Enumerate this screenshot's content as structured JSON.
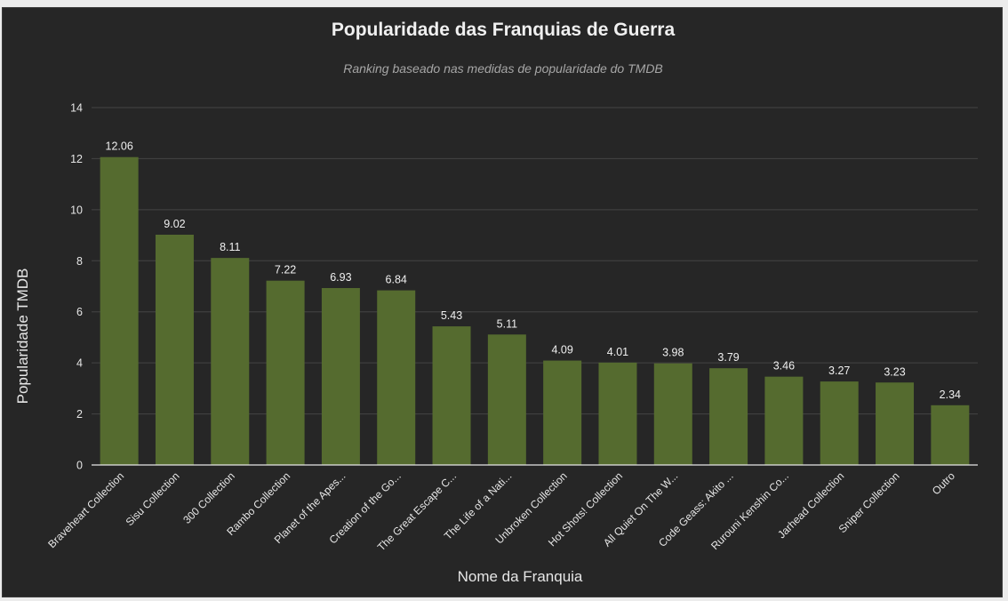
{
  "chart_data": {
    "type": "bar",
    "title": "Popularidade das Franquias de Guerra",
    "subtitle": "Ranking baseado nas medidas de popularidade do TMDB",
    "xlabel": "Nome da Franquia",
    "ylabel": "Popularidade TMDB",
    "ylim": [
      0,
      14
    ],
    "yticks": [
      0,
      2,
      4,
      6,
      8,
      10,
      12,
      14
    ],
    "grid": true,
    "bar_color": "#556b2f",
    "categories": [
      "Braveheart Collection",
      "Sisu Collection",
      "300 Collection",
      "Rambo Collection",
      "Planet of the Apes...",
      "Creation of the Go...",
      "The Great Escape C...",
      "The Life of a Nati...",
      "Unbroken Collection",
      "Hot Shots! Collection",
      "All Quiet On The W...",
      "Code Geass: Akito ...",
      "Rurouni Kenshin Co...",
      "Jarhead Collection",
      "Sniper Collection",
      "Outro"
    ],
    "values": [
      12.06,
      9.02,
      8.11,
      7.22,
      6.93,
      6.84,
      5.43,
      5.11,
      4.09,
      4.01,
      3.98,
      3.79,
      3.46,
      3.27,
      3.23,
      2.34
    ],
    "value_labels": [
      "12.06",
      "9.02",
      "8.11",
      "7.22",
      "6.93",
      "6.84",
      "5.43",
      "5.11",
      "4.09",
      "4.01",
      "3.98",
      "3.79",
      "3.46",
      "3.27",
      "3.23",
      "2.34"
    ]
  }
}
